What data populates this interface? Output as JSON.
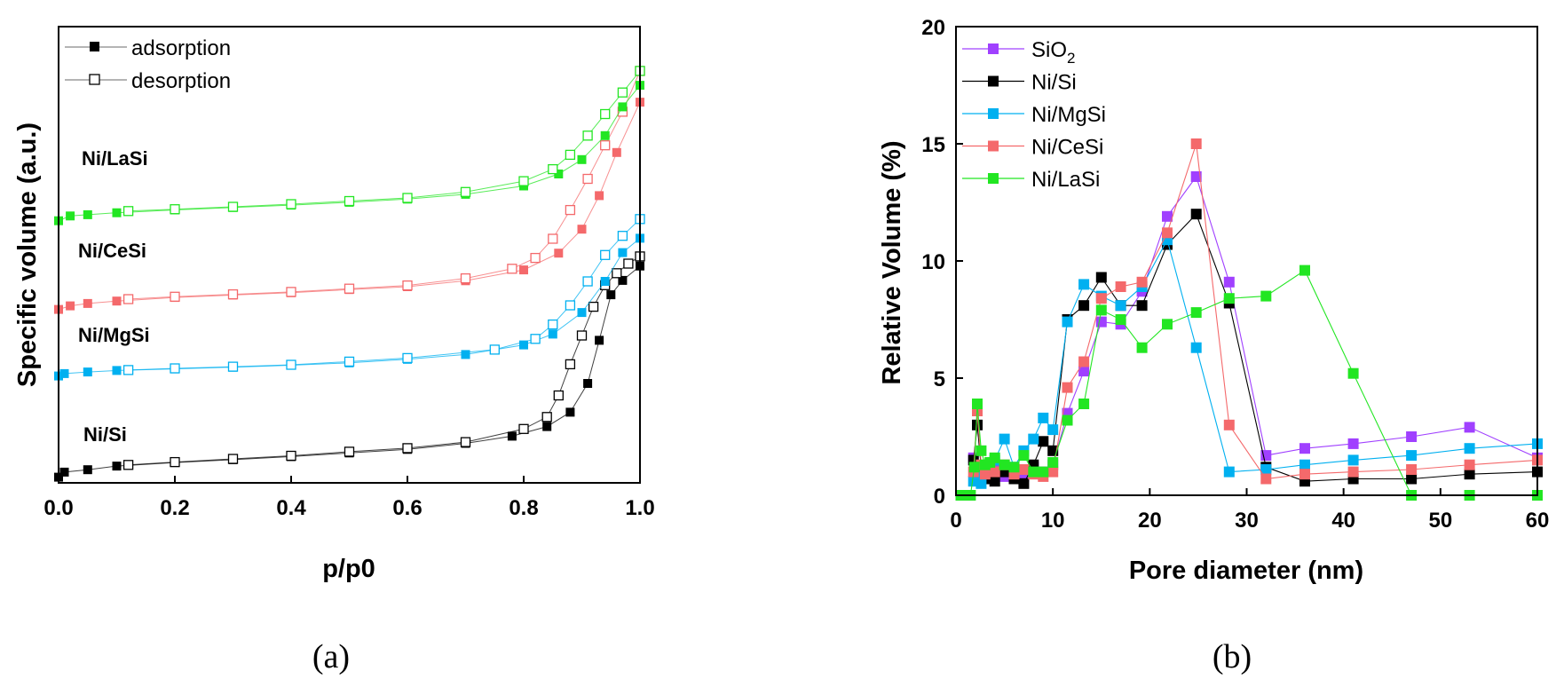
{
  "chart_data": [
    {
      "panel": "(a)",
      "type": "line",
      "xlabel": "p/p0",
      "ylabel": "Specific volume (a.u.)",
      "xlim": [
        0,
        1.0
      ],
      "x_ticks": [
        "0.0",
        "0.2",
        "0.4",
        "0.6",
        "0.8",
        "1.0"
      ],
      "y_ticks_labeled": false,
      "legend": {
        "position": "top-left",
        "entries": [
          {
            "label": "adsorption",
            "marker": "filled-square"
          },
          {
            "label": "desorption",
            "marker": "open-square"
          }
        ]
      },
      "series": [
        {
          "name": "Ni/Si",
          "color": "#000000",
          "adsorption": [
            [
              0.0,
              0.09
            ],
            [
              0.01,
              0.3
            ],
            [
              0.05,
              0.4
            ],
            [
              0.1,
              0.55
            ],
            [
              0.2,
              0.7
            ],
            [
              0.3,
              0.82
            ],
            [
              0.4,
              0.95
            ],
            [
              0.5,
              1.1
            ],
            [
              0.6,
              1.25
            ],
            [
              0.7,
              1.5
            ],
            [
              0.78,
              1.8
            ],
            [
              0.84,
              2.2
            ],
            [
              0.88,
              2.8
            ],
            [
              0.91,
              4.0
            ],
            [
              0.93,
              5.8
            ],
            [
              0.95,
              7.7
            ],
            [
              0.97,
              8.3
            ],
            [
              1.0,
              8.9
            ]
          ],
          "desorption": [
            [
              1.0,
              9.3
            ],
            [
              0.98,
              9.0
            ],
            [
              0.96,
              8.6
            ],
            [
              0.94,
              8.1
            ],
            [
              0.92,
              7.2
            ],
            [
              0.9,
              6.0
            ],
            [
              0.88,
              4.8
            ],
            [
              0.86,
              3.5
            ],
            [
              0.84,
              2.6
            ],
            [
              0.8,
              2.1
            ],
            [
              0.7,
              1.55
            ],
            [
              0.6,
              1.3
            ],
            [
              0.5,
              1.15
            ],
            [
              0.4,
              0.98
            ],
            [
              0.3,
              0.85
            ],
            [
              0.2,
              0.72
            ],
            [
              0.12,
              0.6
            ]
          ]
        },
        {
          "name": "Ni/MgSi",
          "color": "#00b0f0",
          "adsorption": [
            [
              0.0,
              0.05
            ],
            [
              0.01,
              0.15
            ],
            [
              0.05,
              0.22
            ],
            [
              0.1,
              0.28
            ],
            [
              0.2,
              0.35
            ],
            [
              0.3,
              0.42
            ],
            [
              0.4,
              0.5
            ],
            [
              0.5,
              0.6
            ],
            [
              0.6,
              0.75
            ],
            [
              0.7,
              0.95
            ],
            [
              0.8,
              1.35
            ],
            [
              0.85,
              1.8
            ],
            [
              0.9,
              2.7
            ],
            [
              0.94,
              4.0
            ],
            [
              0.97,
              5.2
            ],
            [
              1.0,
              5.8
            ]
          ],
          "desorption": [
            [
              1.0,
              6.6
            ],
            [
              0.97,
              5.9
            ],
            [
              0.94,
              5.1
            ],
            [
              0.91,
              4.0
            ],
            [
              0.88,
              3.0
            ],
            [
              0.85,
              2.2
            ],
            [
              0.82,
              1.6
            ],
            [
              0.75,
              1.15
            ],
            [
              0.6,
              0.8
            ],
            [
              0.5,
              0.65
            ],
            [
              0.4,
              0.52
            ],
            [
              0.3,
              0.44
            ],
            [
              0.2,
              0.37
            ],
            [
              0.12,
              0.3
            ]
          ]
        },
        {
          "name": "Ni/CeSi",
          "color": "#f4696b",
          "adsorption": [
            [
              0.0,
              0.05
            ],
            [
              0.02,
              0.2
            ],
            [
              0.05,
              0.3
            ],
            [
              0.1,
              0.4
            ],
            [
              0.2,
              0.55
            ],
            [
              0.3,
              0.65
            ],
            [
              0.4,
              0.75
            ],
            [
              0.5,
              0.88
            ],
            [
              0.6,
              1.0
            ],
            [
              0.7,
              1.25
            ],
            [
              0.8,
              1.7
            ],
            [
              0.86,
              2.4
            ],
            [
              0.9,
              3.4
            ],
            [
              0.93,
              4.8
            ],
            [
              0.96,
              6.6
            ],
            [
              1.0,
              8.7
            ]
          ],
          "desorption": [
            [
              1.0,
              10.0
            ],
            [
              0.97,
              8.3
            ],
            [
              0.94,
              6.9
            ],
            [
              0.91,
              5.5
            ],
            [
              0.88,
              4.2
            ],
            [
              0.85,
              3.0
            ],
            [
              0.82,
              2.2
            ],
            [
              0.78,
              1.75
            ],
            [
              0.7,
              1.35
            ],
            [
              0.6,
              1.05
            ],
            [
              0.5,
              0.92
            ],
            [
              0.4,
              0.78
            ],
            [
              0.3,
              0.68
            ],
            [
              0.2,
              0.58
            ],
            [
              0.12,
              0.48
            ]
          ]
        },
        {
          "name": "Ni/LaSi",
          "color": "#22e622",
          "adsorption": [
            [
              0.0,
              0.05
            ],
            [
              0.02,
              0.25
            ],
            [
              0.05,
              0.3
            ],
            [
              0.1,
              0.38
            ],
            [
              0.2,
              0.5
            ],
            [
              0.3,
              0.6
            ],
            [
              0.4,
              0.7
            ],
            [
              0.5,
              0.82
            ],
            [
              0.6,
              0.95
            ],
            [
              0.7,
              1.15
            ],
            [
              0.8,
              1.5
            ],
            [
              0.86,
              2.0
            ],
            [
              0.9,
              2.6
            ],
            [
              0.94,
              3.6
            ],
            [
              0.97,
              4.8
            ],
            [
              1.0,
              5.7
            ]
          ],
          "desorption": [
            [
              1.0,
              6.3
            ],
            [
              0.97,
              5.4
            ],
            [
              0.94,
              4.5
            ],
            [
              0.91,
              3.6
            ],
            [
              0.88,
              2.8
            ],
            [
              0.85,
              2.2
            ],
            [
              0.8,
              1.7
            ],
            [
              0.7,
              1.25
            ],
            [
              0.6,
              1.0
            ],
            [
              0.5,
              0.87
            ],
            [
              0.4,
              0.74
            ],
            [
              0.3,
              0.63
            ],
            [
              0.2,
              0.53
            ],
            [
              0.12,
              0.45
            ]
          ]
        }
      ]
    },
    {
      "panel": "(b)",
      "type": "line",
      "xlabel": "Pore diameter (nm)",
      "ylabel": "Relative Volume (%)",
      "xlim": [
        0,
        60
      ],
      "ylim": [
        0,
        20
      ],
      "x_ticks": [
        "0",
        "10",
        "20",
        "30",
        "40",
        "50",
        "60"
      ],
      "y_ticks": [
        "0",
        "5",
        "10",
        "15",
        "20"
      ],
      "legend": {
        "position": "top-left"
      },
      "series": [
        {
          "name": "SiO",
          "subscript": "2",
          "color": "#a040ff",
          "points": [
            [
              1.8,
              1.6
            ],
            [
              2.2,
              1.2
            ],
            [
              2.6,
              0.9
            ],
            [
              3.0,
              1.0
            ],
            [
              3.5,
              0.8
            ],
            [
              4.0,
              1.1
            ],
            [
              5.0,
              0.8
            ],
            [
              6.0,
              0.9
            ],
            [
              7.0,
              0.8
            ],
            [
              8.0,
              1.2
            ],
            [
              9.0,
              1.0
            ],
            [
              10.0,
              1.3
            ],
            [
              11.5,
              3.5
            ],
            [
              13.2,
              5.3
            ],
            [
              15.0,
              7.4
            ],
            [
              17.0,
              7.3
            ],
            [
              19.2,
              8.7
            ],
            [
              21.8,
              11.9
            ],
            [
              24.8,
              13.6
            ],
            [
              28.2,
              9.1
            ],
            [
              32.0,
              1.7
            ],
            [
              36.0,
              2.0
            ],
            [
              41.0,
              2.2
            ],
            [
              47.0,
              2.5
            ],
            [
              53.0,
              2.9
            ],
            [
              60.0,
              1.6
            ]
          ]
        },
        {
          "name": "Ni/Si",
          "color": "#000000",
          "points": [
            [
              1.8,
              1.5
            ],
            [
              2.2,
              3.0
            ],
            [
              2.6,
              1.2
            ],
            [
              3.0,
              0.7
            ],
            [
              3.5,
              0.9
            ],
            [
              4.0,
              0.6
            ],
            [
              5.0,
              1.0
            ],
            [
              6.0,
              0.7
            ],
            [
              7.0,
              0.5
            ],
            [
              8.0,
              1.3
            ],
            [
              9.0,
              2.3
            ],
            [
              10.0,
              1.9
            ],
            [
              11.5,
              7.5
            ],
            [
              13.2,
              8.1
            ],
            [
              15.0,
              9.3
            ],
            [
              17.0,
              8.1
            ],
            [
              19.2,
              8.1
            ],
            [
              21.8,
              10.7
            ],
            [
              24.8,
              12.0
            ],
            [
              28.2,
              8.2
            ],
            [
              32.0,
              1.2
            ],
            [
              36.0,
              0.6
            ],
            [
              41.0,
              0.7
            ],
            [
              47.0,
              0.7
            ],
            [
              53.0,
              0.9
            ],
            [
              60.0,
              1.0
            ]
          ]
        },
        {
          "name": "Ni/MgSi",
          "color": "#00b0f0",
          "points": [
            [
              1.8,
              0.6
            ],
            [
              2.2,
              0.8
            ],
            [
              2.6,
              0.5
            ],
            [
              3.0,
              1.0
            ],
            [
              3.5,
              1.2
            ],
            [
              4.0,
              1.5
            ],
            [
              5.0,
              2.4
            ],
            [
              6.0,
              1.2
            ],
            [
              7.0,
              1.9
            ],
            [
              8.0,
              2.4
            ],
            [
              9.0,
              3.3
            ],
            [
              10.0,
              2.8
            ],
            [
              11.5,
              7.4
            ],
            [
              13.2,
              9.0
            ],
            [
              15.0,
              8.5
            ],
            [
              17.0,
              8.1
            ],
            [
              19.2,
              8.9
            ],
            [
              21.8,
              10.9
            ],
            [
              24.8,
              6.3
            ],
            [
              28.2,
              1.0
            ],
            [
              32.0,
              1.1
            ],
            [
              36.0,
              1.3
            ],
            [
              41.0,
              1.5
            ],
            [
              47.0,
              1.7
            ],
            [
              53.0,
              2.0
            ],
            [
              60.0,
              2.2
            ]
          ]
        },
        {
          "name": "Ni/CeSi",
          "color": "#f4696b",
          "points": [
            [
              1.8,
              1.0
            ],
            [
              2.2,
              3.6
            ],
            [
              2.6,
              1.3
            ],
            [
              3.0,
              0.9
            ],
            [
              3.5,
              1.2
            ],
            [
              4.0,
              1.0
            ],
            [
              5.0,
              1.3
            ],
            [
              6.0,
              0.9
            ],
            [
              7.0,
              1.1
            ],
            [
              8.0,
              0.9
            ],
            [
              9.0,
              0.8
            ],
            [
              10.0,
              1.0
            ],
            [
              11.5,
              4.6
            ],
            [
              13.2,
              5.7
            ],
            [
              15.0,
              8.4
            ],
            [
              17.0,
              8.9
            ],
            [
              19.2,
              9.1
            ],
            [
              21.8,
              11.2
            ],
            [
              24.8,
              15.0
            ],
            [
              28.2,
              3.0
            ],
            [
              32.0,
              0.7
            ],
            [
              36.0,
              0.9
            ],
            [
              41.0,
              1.0
            ],
            [
              47.0,
              1.1
            ],
            [
              53.0,
              1.3
            ],
            [
              60.0,
              1.5
            ]
          ]
        },
        {
          "name": "Ni/LaSi",
          "color": "#22e622",
          "points": [
            [
              0.5,
              0.0
            ],
            [
              1.5,
              0.0
            ],
            [
              1.9,
              1.2
            ],
            [
              2.2,
              3.9
            ],
            [
              2.6,
              1.9
            ],
            [
              3.0,
              1.3
            ],
            [
              3.5,
              1.4
            ],
            [
              4.0,
              1.6
            ],
            [
              5.0,
              1.3
            ],
            [
              6.0,
              1.2
            ],
            [
              7.0,
              1.7
            ],
            [
              8.0,
              1.0
            ],
            [
              9.0,
              1.0
            ],
            [
              10.0,
              1.4
            ],
            [
              11.5,
              3.2
            ],
            [
              13.2,
              3.9
            ],
            [
              15.0,
              7.9
            ],
            [
              17.0,
              7.5
            ],
            [
              19.2,
              6.3
            ],
            [
              21.8,
              7.3
            ],
            [
              24.8,
              7.8
            ],
            [
              28.2,
              8.4
            ],
            [
              32.0,
              8.5
            ],
            [
              36.0,
              9.6
            ],
            [
              41.0,
              5.2
            ],
            [
              47.0,
              0.0
            ],
            [
              53.0,
              0.0
            ],
            [
              60.0,
              0.0
            ]
          ]
        }
      ]
    }
  ]
}
